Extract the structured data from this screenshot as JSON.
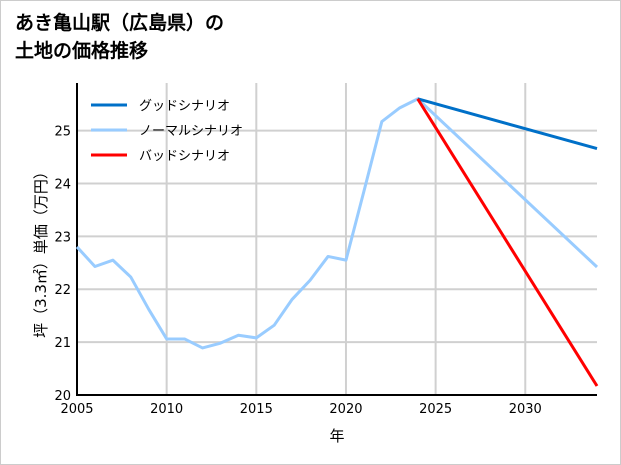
{
  "chart_data": {
    "type": "line",
    "title_lines": [
      "あき亀山駅（広島県）の",
      "土地の価格推移"
    ],
    "xlabel": "年",
    "ylabel": "坪（3.3㎡）単価（万円）",
    "xlim": [
      2005,
      2034
    ],
    "ylim": [
      20,
      25.9
    ],
    "xticks": [
      2005,
      2010,
      2015,
      2020,
      2025,
      2030
    ],
    "yticks": [
      20,
      21,
      22,
      23,
      24,
      25
    ],
    "grid": true,
    "legend_position": "top-left",
    "series": [
      {
        "name": "グッドシナリオ",
        "color": "#0070c8",
        "x": [
          2024,
          2034
        ],
        "y": [
          25.6,
          24.66
        ]
      },
      {
        "name": "ノーマルシナリオ",
        "color": "#99ccff",
        "x": [
          2005,
          2006,
          2007,
          2008,
          2009,
          2010,
          2011,
          2012,
          2013,
          2014,
          2015,
          2016,
          2017,
          2018,
          2019,
          2020,
          2021,
          2022,
          2023,
          2024,
          2034
        ],
        "y": [
          22.8,
          22.43,
          22.55,
          22.23,
          21.62,
          21.06,
          21.06,
          20.89,
          20.98,
          21.13,
          21.08,
          21.32,
          21.81,
          22.17,
          22.62,
          22.55,
          23.85,
          25.17,
          25.43,
          25.6,
          22.42
        ]
      },
      {
        "name": "バッドシナリオ",
        "color": "#ff0000",
        "x": [
          2024,
          2034
        ],
        "y": [
          25.6,
          20.17
        ]
      }
    ]
  }
}
